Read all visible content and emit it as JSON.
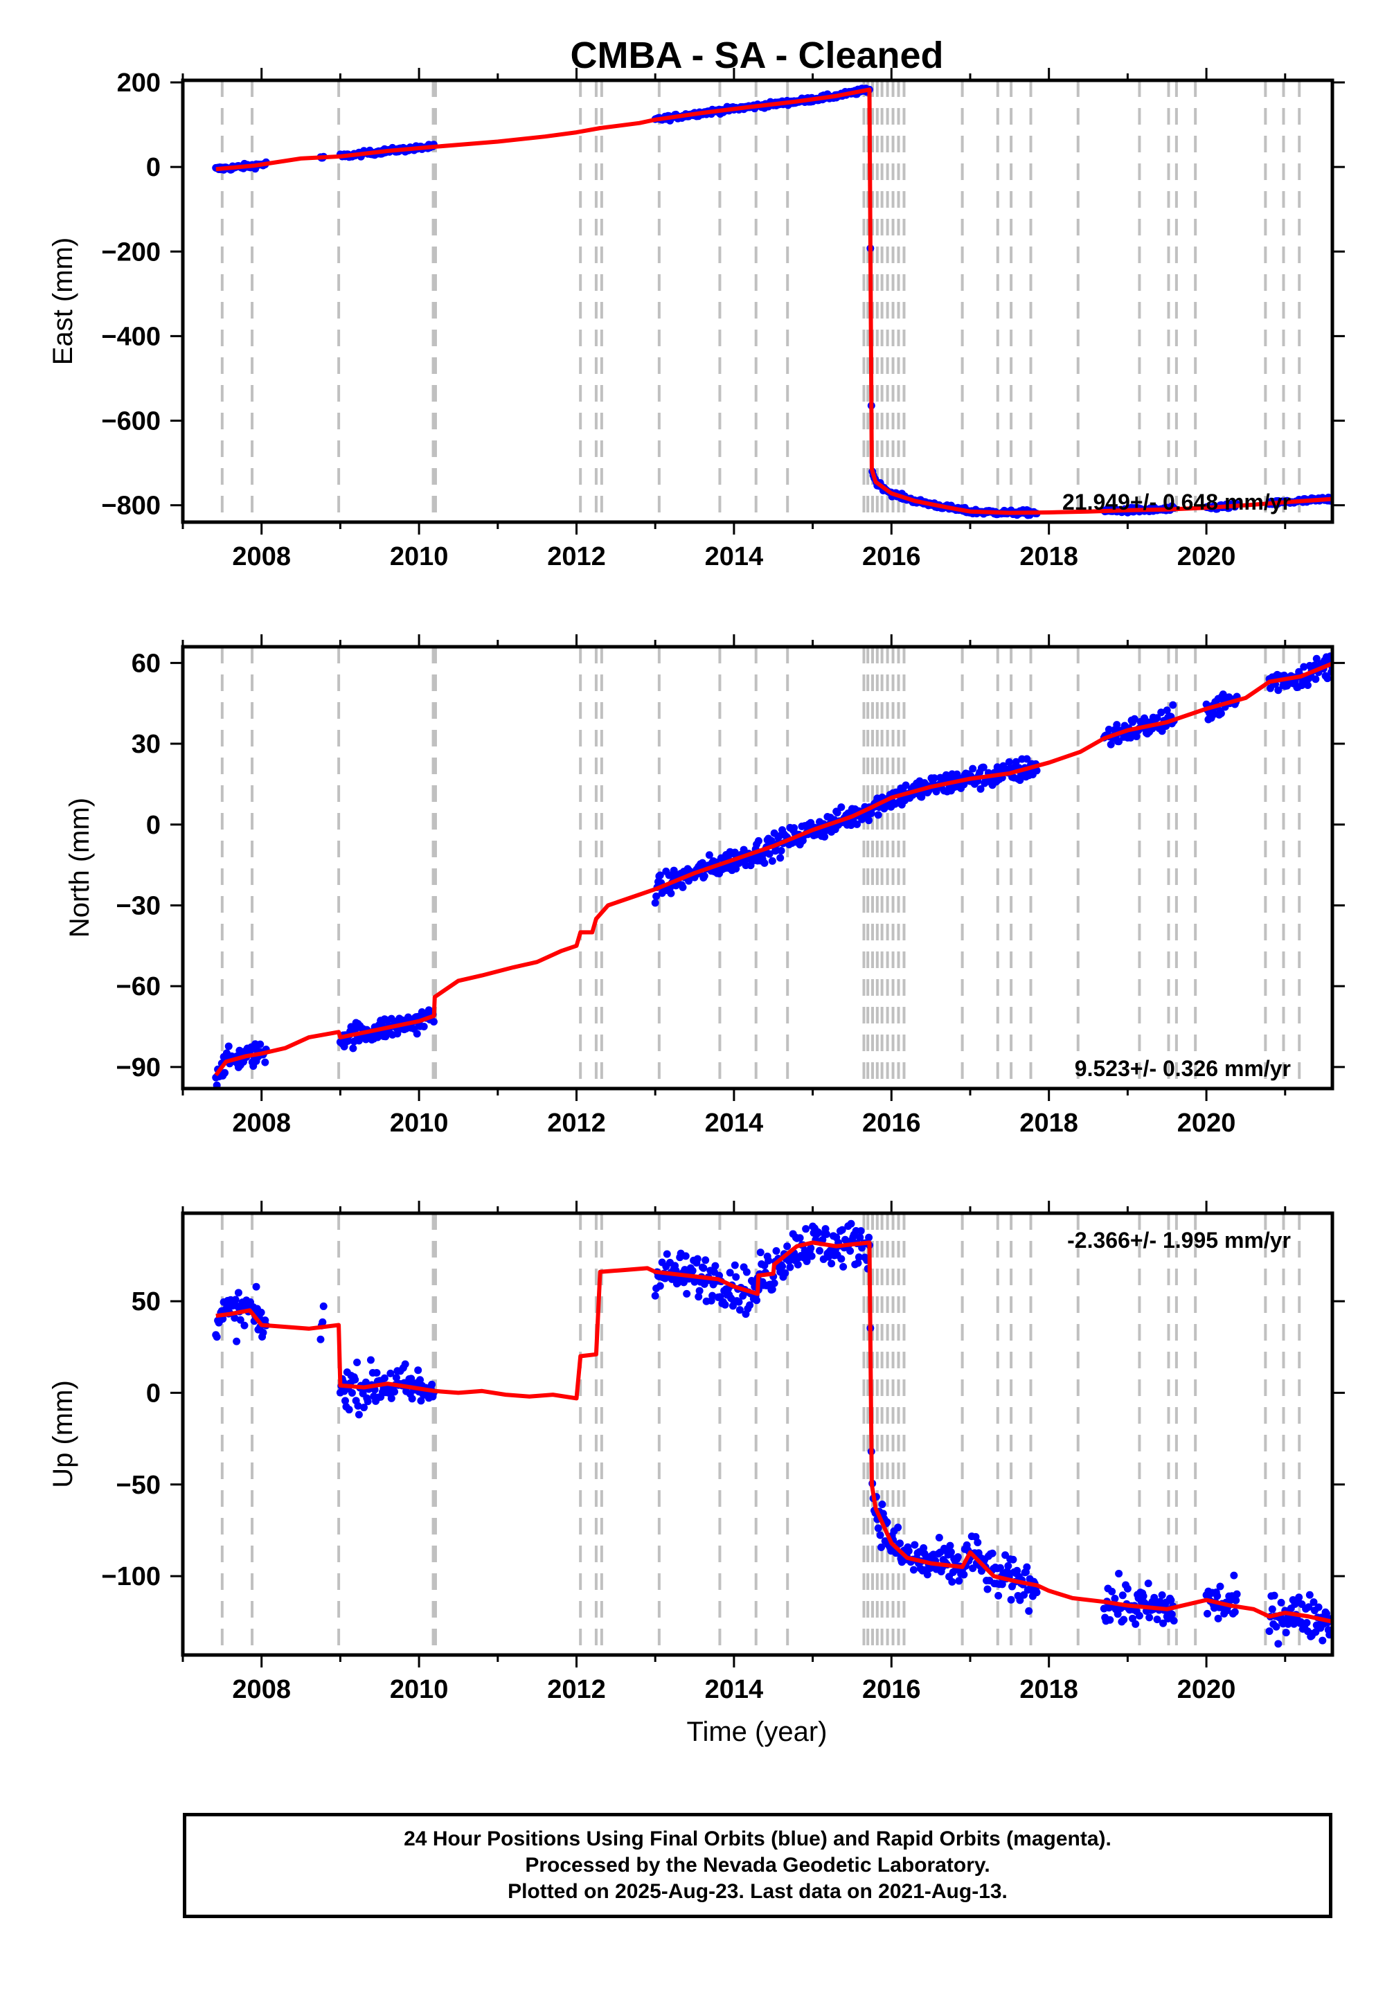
{
  "title": "CMBA  - SA - Cleaned",
  "footer": {
    "lines": [
      "24 Hour Positions Using Final Orbits (blue) and Rapid Orbits (magenta).",
      "Processed by the Nevada Geodetic Laboratory.",
      "Plotted on 2025-Aug-23. Last data on 2021-Aug-13."
    ]
  },
  "colors": {
    "data_points": "#0000ff",
    "model_line": "#ff0000",
    "event_lines": "#c0c0c0",
    "frame": "#000000"
  },
  "chart_data": [
    {
      "type": "scatter",
      "ylabel": "East (mm)",
      "xlim": [
        2007.0,
        2021.6
      ],
      "ylim": [
        -840,
        205
      ],
      "xticks": [
        2008,
        2010,
        2012,
        2014,
        2016,
        2018,
        2020
      ],
      "xtick_labels": [
        "2008",
        "2010",
        "2012",
        "2014",
        "2016",
        "2018",
        "2020"
      ],
      "yticks": [
        200,
        0,
        -200,
        -400,
        -600,
        -800
      ],
      "ytick_labels": [
        "200",
        "0",
        "−200",
        "−400",
        "−600",
        "−800"
      ],
      "rate_label": "21.949+/- 0.648 mm/yr",
      "rate_label_position": "bottom-right",
      "data_segments": [
        [
          2007.42,
          2008.06
        ],
        [
          2008.75,
          2008.8
        ],
        [
          2009.0,
          2010.2
        ],
        [
          2013.0,
          2015.72
        ],
        [
          2015.72,
          2017.85
        ],
        [
          2018.7,
          2019.6
        ],
        [
          2020.0,
          2020.4
        ],
        [
          2020.8,
          2021.62
        ]
      ],
      "noise_mm": 3,
      "model_line": {
        "x": [
          2007.42,
          2007.9,
          2008.5,
          2009.0,
          2009.6,
          2010.2,
          2011.0,
          2011.6,
          2012.0,
          2012.3,
          2012.8,
          2013.0,
          2013.6,
          2014.2,
          2014.8,
          2015.3,
          2015.72,
          2015.75,
          2015.8,
          2016.0,
          2016.3,
          2016.7,
          2017.0,
          2017.5,
          2018.0,
          2018.5,
          2019.0,
          2019.5,
          2020.0,
          2020.5,
          2021.0,
          2021.62
        ],
        "y": [
          -5,
          3,
          20,
          25,
          38,
          48,
          60,
          72,
          82,
          92,
          104,
          112,
          128,
          142,
          155,
          168,
          183,
          -715,
          -745,
          -772,
          -790,
          -805,
          -815,
          -818,
          -817,
          -815,
          -812,
          -810,
          -806,
          -800,
          -793,
          -785
        ]
      }
    },
    {
      "type": "scatter",
      "ylabel": "North (mm)",
      "xlim": [
        2007.0,
        2021.6
      ],
      "ylim": [
        -98,
        66
      ],
      "xticks": [
        2008,
        2010,
        2012,
        2014,
        2016,
        2018,
        2020
      ],
      "xtick_labels": [
        "2008",
        "2010",
        "2012",
        "2014",
        "2016",
        "2018",
        "2020"
      ],
      "yticks": [
        60,
        30,
        0,
        -30,
        -60,
        -90
      ],
      "ytick_labels": [
        "60",
        "30",
        "0",
        "−30",
        "−60",
        "−90"
      ],
      "rate_label": "9.523+/- 0.326 mm/yr",
      "rate_label_position": "bottom-right",
      "data_segments": [
        [
          2007.42,
          2008.06
        ],
        [
          2009.0,
          2010.2
        ],
        [
          2013.0,
          2015.72
        ],
        [
          2015.72,
          2017.85
        ],
        [
          2018.7,
          2019.6
        ],
        [
          2020.0,
          2020.4
        ],
        [
          2020.8,
          2021.62
        ]
      ],
      "noise_mm": 2.2,
      "model_line": {
        "x": [
          2007.42,
          2007.55,
          2007.8,
          2008.0,
          2008.3,
          2008.6,
          2008.98,
          2009.0,
          2009.5,
          2010.0,
          2010.19,
          2010.2,
          2010.5,
          2010.8,
          2011.2,
          2011.5,
          2011.8,
          2012.0,
          2012.05,
          2012.2,
          2012.25,
          2012.4,
          2012.8,
          2013.0,
          2013.5,
          2014.0,
          2014.5,
          2015.0,
          2015.5,
          2015.72,
          2016.0,
          2016.5,
          2017.0,
          2017.5,
          2018.0,
          2018.4,
          2018.7,
          2019.0,
          2019.5,
          2020.0,
          2020.5,
          2020.8,
          2021.2,
          2021.62
        ],
        "y": [
          -93,
          -88,
          -86,
          -85,
          -83,
          -79,
          -77,
          -79,
          -76,
          -73,
          -71,
          -64,
          -58,
          -56,
          -53,
          -51,
          -47,
          -45,
          -40,
          -40,
          -35,
          -30,
          -26,
          -24,
          -18,
          -13,
          -8,
          -2,
          3,
          6,
          10,
          14,
          17,
          19,
          23,
          27,
          32,
          35,
          38,
          43,
          47,
          53,
          55,
          60
        ]
      }
    },
    {
      "type": "scatter",
      "ylabel": "Up (mm)",
      "xlabel": "Time (year)",
      "xlim": [
        2007.0,
        2021.6
      ],
      "ylim": [
        -143,
        98
      ],
      "xticks": [
        2008,
        2010,
        2012,
        2014,
        2016,
        2018,
        2020
      ],
      "xtick_labels": [
        "2008",
        "2010",
        "2012",
        "2014",
        "2016",
        "2018",
        "2020"
      ],
      "yticks": [
        50,
        0,
        -50,
        -100
      ],
      "ytick_labels": [
        "50",
        "0",
        "−50",
        "−100"
      ],
      "rate_label": "-2.366+/- 1.995 mm/yr",
      "rate_label_position": "top-right",
      "data_segments": [
        [
          2007.42,
          2008.06
        ],
        [
          2008.75,
          2008.8
        ],
        [
          2009.0,
          2010.2
        ],
        [
          2013.0,
          2015.72
        ],
        [
          2015.72,
          2017.85
        ],
        [
          2018.7,
          2019.6
        ],
        [
          2020.0,
          2020.4
        ],
        [
          2020.8,
          2021.62
        ]
      ],
      "noise_mm": 6,
      "model_line": {
        "x": [
          2007.42,
          2007.6,
          2007.85,
          2008.0,
          2008.3,
          2008.6,
          2008.98,
          2009.0,
          2009.3,
          2009.6,
          2009.9,
          2010.2,
          2010.5,
          2010.8,
          2011.1,
          2011.4,
          2011.7,
          2012.0,
          2012.05,
          2012.25,
          2012.3,
          2012.6,
          2012.9,
          2013.0,
          2013.4,
          2013.8,
          2014.0,
          2014.3,
          2014.31,
          2014.5,
          2014.51,
          2014.8,
          2015.0,
          2015.3,
          2015.5,
          2015.72,
          2015.75,
          2015.8,
          2016.0,
          2016.2,
          2016.5,
          2016.9,
          2017.0,
          2017.3,
          2017.6,
          2017.85,
          2018.0,
          2018.3,
          2018.7,
          2019.0,
          2019.5,
          2020.0,
          2020.3,
          2020.6,
          2020.8,
          2021.0,
          2021.3,
          2021.62
        ],
        "y": [
          42,
          43,
          45,
          37,
          36,
          35,
          37,
          4,
          3,
          5,
          3,
          1,
          0,
          1,
          -1,
          -2,
          -1,
          -3,
          20,
          21,
          66,
          67,
          68,
          66,
          64,
          62,
          58,
          54,
          64,
          65,
          70,
          80,
          82,
          80,
          81,
          82,
          -50,
          -63,
          -82,
          -90,
          -93,
          -95,
          -87,
          -100,
          -103,
          -105,
          -108,
          -112,
          -114,
          -116,
          -118,
          -113,
          -116,
          -118,
          -122,
          -120,
          -122,
          -125
        ]
      }
    }
  ],
  "event_lines_years": [
    2007.5,
    2007.88,
    2008.98,
    2010.18,
    2010.21,
    2012.05,
    2012.25,
    2012.32,
    2013.05,
    2013.82,
    2014.28,
    2014.68,
    2015.65,
    2015.7,
    2015.76,
    2015.82,
    2015.88,
    2015.95,
    2016.02,
    2016.09,
    2016.16,
    2016.9,
    2017.35,
    2017.52,
    2017.77,
    2018.37,
    2019.15,
    2019.52,
    2019.62,
    2019.86,
    2020.75,
    2020.98,
    2021.18
  ]
}
